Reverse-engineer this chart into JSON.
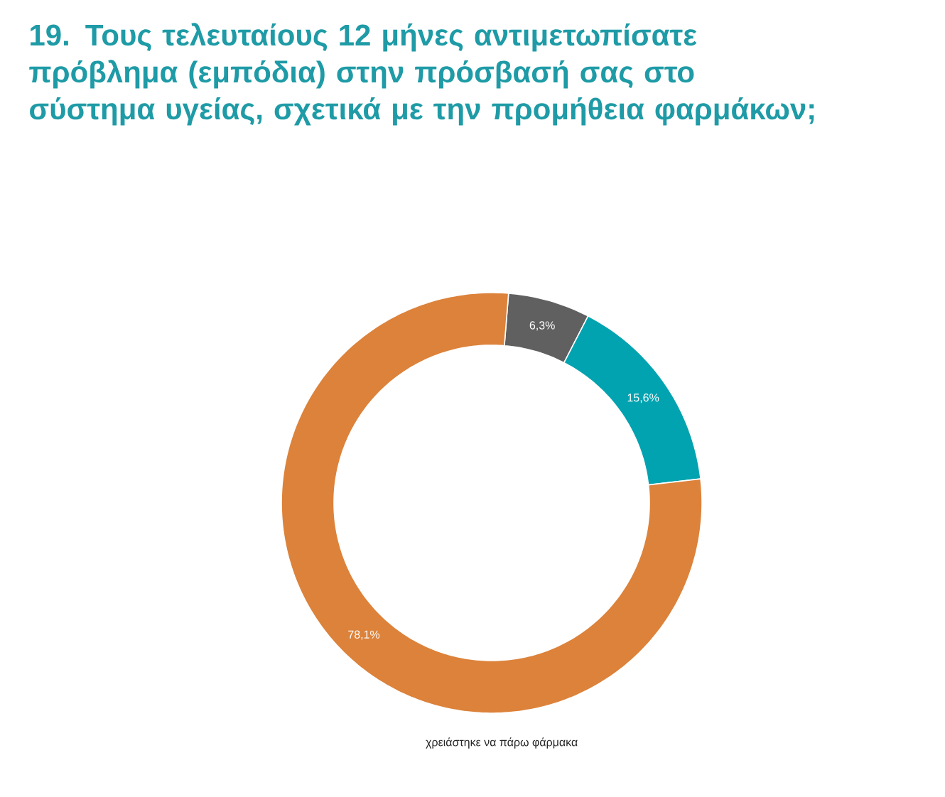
{
  "chart_data": {
    "type": "donut",
    "title": "19. Τους τελευταίους 12 μήνες αντιμετωπίσατε πρόβλημα (εμπόδια) στην πρόσβασή σας στο σύστημα υγείας, σχετικά με την προμήθεια φαρμάκων;",
    "categories": [
      null,
      null,
      null
    ],
    "values": [
      6.3,
      15.6,
      78.1
    ],
    "colors": [
      "#5f605f",
      "#02a3b0",
      "#dc823a"
    ],
    "value_labels": [
      "6,3%",
      "15,6%",
      "78,1%"
    ],
    "annotations": [
      "χρειάστηκε να πάρω φάρμακα"
    ]
  }
}
